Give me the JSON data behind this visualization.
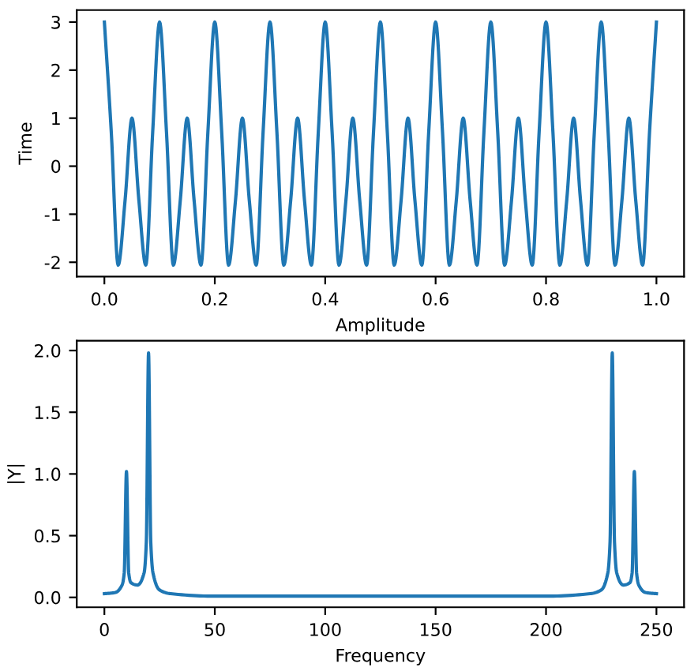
{
  "chart_data": [
    {
      "type": "line",
      "xlabel": "Amplitude",
      "ylabel": "Time",
      "xlim": [
        -0.05,
        1.05
      ],
      "ylim": [
        -2.3,
        3.25
      ],
      "xticks": [
        {
          "value": 0,
          "label": "0.0"
        },
        0.2,
        0.4,
        0.6,
        0.8,
        {
          "value": 1,
          "label": "1.0"
        }
      ],
      "yticks": [
        -2,
        -1,
        0,
        1,
        2,
        3
      ],
      "grid": false,
      "legend": false,
      "series": [
        {
          "color": "#1f77b4",
          "x": [
            0,
            0.0125,
            0.025,
            0.0375,
            0.05,
            0.0625,
            0.075,
            0.0875,
            0.1,
            0.1125,
            0.125,
            0.1375,
            0.15,
            0.1625,
            0.175,
            0.1875,
            0.2,
            0.2125,
            0.225,
            0.2375,
            0.25,
            0.2625,
            0.275,
            0.2875,
            0.3,
            0.3125,
            0.325,
            0.3375,
            0.35,
            0.3625,
            0.375,
            0.3875,
            0.4,
            0.4125,
            0.425,
            0.4375,
            0.45,
            0.4625,
            0.475,
            0.4875,
            0.5,
            0.5125,
            0.525,
            0.5375,
            0.55,
            0.5625,
            0.575,
            0.5875,
            0.6,
            0.6125,
            0.625,
            0.6375,
            0.65,
            0.6625,
            0.675,
            0.6875,
            0.7,
            0.7125,
            0.725,
            0.7375,
            0.75,
            0.7625,
            0.775,
            0.7875,
            0.8,
            0.8125,
            0.825,
            0.8375,
            0.85,
            0.8625,
            0.875,
            0.8875,
            0.9,
            0.9125,
            0.925,
            0.9375,
            0.95,
            0.9625,
            0.975,
            0.9875,
            1.0
          ],
          "values": [
            3,
            0.71,
            -2.06,
            -0.71,
            1,
            -0.71,
            -2.06,
            0.71,
            3,
            0.71,
            -2.06,
            -0.71,
            1,
            -0.71,
            -2.06,
            0.71,
            3,
            0.71,
            -2.06,
            -0.71,
            1,
            -0.71,
            -2.06,
            0.71,
            3,
            0.71,
            -2.06,
            -0.71,
            1,
            -0.71,
            -2.06,
            0.71,
            3,
            0.71,
            -2.06,
            -0.71,
            1,
            -0.71,
            -2.06,
            0.71,
            3,
            0.71,
            -2.06,
            -0.71,
            1,
            -0.71,
            -2.06,
            0.71,
            3,
            0.71,
            -2.06,
            -0.71,
            1,
            -0.71,
            -2.06,
            0.71,
            3,
            0.71,
            -2.06,
            -0.71,
            1,
            -0.71,
            -2.06,
            0.71,
            3,
            0.71,
            -2.06,
            -0.71,
            1,
            -0.71,
            -2.06,
            0.71,
            3,
            0.71,
            -2.06,
            -0.71,
            1,
            -0.71,
            -2.06,
            0.71,
            3
          ]
        }
      ]
    },
    {
      "type": "line",
      "xlabel": "Frequency",
      "ylabel": "|Y|",
      "xlim": [
        -12.5,
        262.5
      ],
      "ylim": [
        -0.08,
        2.08
      ],
      "xticks": [
        0,
        50,
        100,
        150,
        200,
        250
      ],
      "yticks": [
        {
          "value": 0,
          "label": "0.0"
        },
        0.5,
        {
          "value": 1,
          "label": "1.0"
        },
        1.5,
        {
          "value": 2,
          "label": "2.0"
        }
      ],
      "grid": false,
      "legend": false,
      "series": [
        {
          "color": "#1f77b4",
          "x": [
            0,
            5,
            8,
            9,
            10,
            11,
            12,
            15,
            18,
            19,
            20,
            21,
            22,
            25,
            30,
            50,
            100,
            150,
            200,
            220,
            225,
            228,
            229,
            230,
            231,
            232,
            235,
            238,
            239,
            240,
            241,
            242,
            245,
            250
          ],
          "values": [
            0.03,
            0.04,
            0.1,
            0.2,
            1.02,
            0.2,
            0.12,
            0.1,
            0.2,
            0.45,
            1.98,
            0.45,
            0.2,
            0.06,
            0.03,
            0.01,
            0.01,
            0.01,
            0.01,
            0.03,
            0.06,
            0.2,
            0.45,
            1.98,
            0.45,
            0.2,
            0.1,
            0.12,
            0.2,
            1.02,
            0.2,
            0.1,
            0.04,
            0.03
          ]
        }
      ]
    }
  ]
}
